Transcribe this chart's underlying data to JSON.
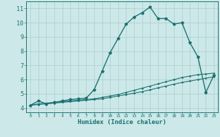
{
  "xlabel": "Humidex (Indice chaleur)",
  "x_ticks": [
    0,
    1,
    2,
    3,
    4,
    5,
    6,
    7,
    8,
    9,
    10,
    11,
    12,
    13,
    14,
    15,
    16,
    17,
    18,
    19,
    20,
    21,
    22,
    23
  ],
  "y_ticks": [
    4,
    5,
    6,
    7,
    8,
    9,
    10,
    11
  ],
  "xlim": [
    -0.5,
    23.5
  ],
  "ylim": [
    3.7,
    11.5
  ],
  "bg_color": "#cce8e8",
  "grid_color": "#aacccc",
  "line_color": "#1a7070",
  "series": [
    {
      "x": [
        0,
        1,
        2,
        3,
        4,
        5,
        6,
        7,
        8,
        9,
        10,
        11,
        12,
        13,
        14,
        15,
        16,
        17,
        18,
        19,
        20,
        21,
        22,
        23
      ],
      "y": [
        4.2,
        4.5,
        4.3,
        4.4,
        4.5,
        4.6,
        4.65,
        4.7,
        5.3,
        6.6,
        7.9,
        8.9,
        9.9,
        10.4,
        10.7,
        11.1,
        10.3,
        10.3,
        9.9,
        10.0,
        8.6,
        7.6,
        5.1,
        6.3
      ],
      "marker": "*",
      "markersize": 3,
      "lw": 1.0
    },
    {
      "x": [
        0,
        1,
        2,
        3,
        4,
        5,
        6,
        7,
        8,
        9,
        10,
        11,
        12,
        13,
        14,
        15,
        16,
        17,
        18,
        19,
        20,
        21,
        22,
        23
      ],
      "y": [
        4.2,
        4.3,
        4.35,
        4.4,
        4.45,
        4.5,
        4.55,
        4.6,
        4.65,
        4.75,
        4.85,
        4.95,
        5.1,
        5.25,
        5.4,
        5.55,
        5.7,
        5.85,
        6.0,
        6.15,
        6.25,
        6.35,
        6.4,
        6.45
      ],
      "marker": ".",
      "markersize": 2,
      "lw": 0.8
    },
    {
      "x": [
        0,
        1,
        2,
        3,
        4,
        5,
        6,
        7,
        8,
        9,
        10,
        11,
        12,
        13,
        14,
        15,
        16,
        17,
        18,
        19,
        20,
        21,
        22,
        23
      ],
      "y": [
        4.2,
        4.25,
        4.3,
        4.35,
        4.4,
        4.45,
        4.5,
        4.55,
        4.6,
        4.65,
        4.75,
        4.85,
        4.95,
        5.05,
        5.15,
        5.28,
        5.42,
        5.55,
        5.68,
        5.8,
        5.9,
        6.0,
        6.1,
        6.2
      ],
      "marker": ".",
      "markersize": 2,
      "lw": 0.8
    }
  ]
}
